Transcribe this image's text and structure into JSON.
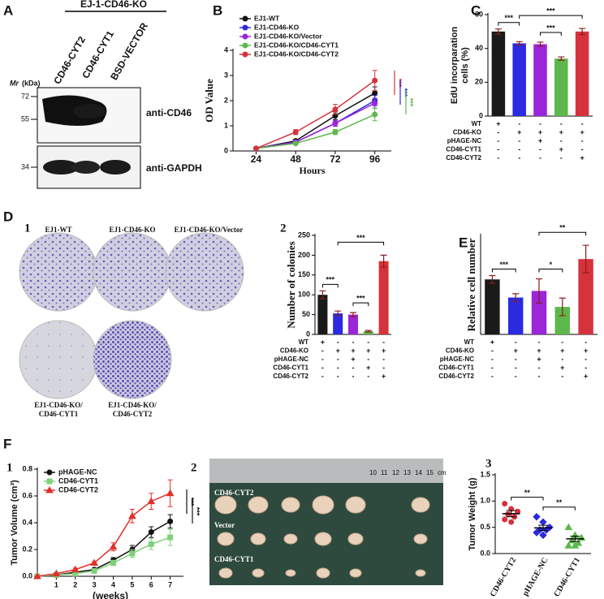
{
  "panel_labels": [
    "A",
    "B",
    "C",
    "D",
    "E",
    "F"
  ],
  "sub_labels": [
    "1",
    "2",
    "1",
    "2",
    "3"
  ],
  "blot": {
    "header": "EJ-1-CD46-KO",
    "lanes": [
      "CD46-CYT2",
      "CD46-CYT1",
      "BSD-VECTOR"
    ],
    "mr_label": "Mr",
    "mr_unit": "(kDa)",
    "markers": [
      "72",
      "55",
      "34"
    ],
    "antibodies": [
      "anti-CD46",
      "anti-GAPDH"
    ]
  },
  "colony_images": {
    "labels": [
      [
        "EJ1-WT"
      ],
      [
        "EJ1-CD46-KO"
      ],
      [
        "EJ1-CD46-KO/Vector"
      ],
      [
        "EJ1-CD46-KO/",
        "CD46-CYT1"
      ],
      [
        "EJ1-CD46-KO/",
        "CD46-CYT2"
      ]
    ]
  },
  "tumor_photo": {
    "ruler": [
      "10",
      "11",
      "12",
      "13",
      "14",
      "15",
      "cm"
    ],
    "rows": [
      "CD46-CYT2",
      "Vector",
      "CD46-CYT1"
    ]
  },
  "chart_data": [
    {
      "type": "line",
      "xlabel": "Hours",
      "ylabel": [
        "OD Value"
      ],
      "x": [
        24,
        48,
        72,
        96
      ],
      "xlim": [
        10,
        106
      ],
      "xticks": [
        24,
        48,
        72,
        96
      ],
      "ylim": [
        0,
        4
      ],
      "yticks": [
        0,
        1,
        2,
        3,
        4
      ],
      "legend": "top-left",
      "series": [
        {
          "name": "EJ1-WT",
          "color": "#111111",
          "marker": "circle",
          "values": [
            0.1,
            0.4,
            1.4,
            2.3
          ],
          "errors": [
            0.02,
            0.05,
            0.15,
            0.25
          ]
        },
        {
          "name": "EJ1-CD46-KO",
          "color": "#2a2ae0",
          "marker": "circle",
          "values": [
            0.1,
            0.35,
            1.1,
            2.0
          ],
          "errors": [
            0.02,
            0.04,
            0.12,
            0.2
          ]
        },
        {
          "name": "EJ1-CD46-KO/Vector",
          "color": "#9b25d8",
          "marker": "circle",
          "values": [
            0.1,
            0.35,
            1.1,
            1.9
          ],
          "errors": [
            0.02,
            0.04,
            0.12,
            0.2
          ]
        },
        {
          "name": "EJ1-CD46-KO/CD46-CYT1",
          "color": "#5cb84a",
          "marker": "circle",
          "values": [
            0.1,
            0.3,
            0.75,
            1.45
          ],
          "errors": [
            0.02,
            0.04,
            0.1,
            0.25
          ]
        },
        {
          "name": "EJ1-CD46-KO/CD46-CYT2",
          "color": "#d6323b",
          "marker": "circle",
          "values": [
            0.1,
            0.75,
            1.65,
            2.8
          ],
          "errors": [
            0.02,
            0.1,
            0.2,
            0.4
          ]
        }
      ],
      "annotations": [
        {
          "text": "***",
          "color": "#d6323b"
        },
        {
          "text": "***",
          "color": "#2a2ae0"
        },
        {
          "text": "***",
          "color": "#5cb84a"
        }
      ]
    },
    {
      "type": "bar",
      "ylabel": [
        "EdU incorparation",
        "cells (%)"
      ],
      "values": [
        50,
        43,
        42.5,
        34,
        50
      ],
      "errors": [
        1.5,
        1,
        1.2,
        1,
        1.8
      ],
      "colors": [
        "#1a1a1a",
        "#2a2ae0",
        "#9b25d8",
        "#5cb84a",
        "#d6323b"
      ],
      "ylim": [
        0,
        60
      ],
      "yticks": [
        0,
        20,
        40,
        60
      ],
      "sign_table": [
        {
          "label": "WT",
          "signs": [
            "+",
            "-",
            "-",
            "-",
            "-"
          ]
        },
        {
          "label": "CD46-KO",
          "signs": [
            "-",
            "+",
            "+",
            "+",
            "+"
          ]
        },
        {
          "label": "pHAGE-NC",
          "signs": [
            "-",
            "-",
            "+",
            "-",
            "-"
          ]
        },
        {
          "label": "CD46-CYT1",
          "signs": [
            "-",
            "-",
            "-",
            "+",
            "-"
          ]
        },
        {
          "label": "CD46-CYT2",
          "signs": [
            "-",
            "-",
            "-",
            "-",
            "+"
          ]
        }
      ],
      "comparisons": [
        {
          "between": [
            0,
            1
          ],
          "label": "***"
        },
        {
          "between": [
            2,
            3
          ],
          "label": "***"
        },
        {
          "between": [
            1,
            4
          ],
          "label": "***"
        }
      ]
    },
    {
      "type": "bar",
      "ylabel": [
        "Number of colonies"
      ],
      "values": [
        100,
        53,
        50,
        8,
        185
      ],
      "errors": [
        10,
        6,
        5,
        2,
        15
      ],
      "colors": [
        "#1a1a1a",
        "#2a2ae0",
        "#9b25d8",
        "#5cb84a",
        "#d6323b"
      ],
      "ylim": [
        0,
        250
      ],
      "yticks": [
        0,
        50,
        100,
        150,
        200,
        250
      ],
      "sign_table": [
        {
          "label": "WT",
          "signs": [
            "+",
            "-",
            "-",
            "-",
            "-"
          ]
        },
        {
          "label": "CD46-KO",
          "signs": [
            "-",
            "+",
            "+",
            "+",
            "+"
          ]
        },
        {
          "label": "pHAGE-NC",
          "signs": [
            "-",
            "-",
            "+",
            "-",
            "-"
          ]
        },
        {
          "label": "CD46-CYT1",
          "signs": [
            "-",
            "-",
            "-",
            "+",
            "-"
          ]
        },
        {
          "label": "CD46-CYT2",
          "signs": [
            "-",
            "-",
            "-",
            "-",
            "+"
          ]
        }
      ],
      "comparisons": [
        {
          "between": [
            0,
            1
          ],
          "label": "***"
        },
        {
          "between": [
            2,
            3
          ],
          "label": "***"
        },
        {
          "between": [
            1,
            4
          ],
          "label": "***"
        }
      ]
    },
    {
      "type": "bar",
      "ylabel": [
        "Relative cell number"
      ],
      "values": [
        100,
        67,
        79,
        50,
        137
      ],
      "errors": [
        7,
        7,
        22,
        16,
        25
      ],
      "colors": [
        "#1a1a1a",
        "#2a2ae0",
        "#9b25d8",
        "#5cb84a",
        "#d6323b"
      ],
      "ylim": [
        0,
        180
      ],
      "sign_table": [
        {
          "label": "WT",
          "signs": [
            "+",
            "-",
            "-",
            "-",
            "-"
          ]
        },
        {
          "label": "CD46-KO",
          "signs": [
            "-",
            "+",
            "+",
            "+",
            "+"
          ]
        },
        {
          "label": "pHAGE-NC",
          "signs": [
            "-",
            "-",
            "+",
            "-",
            "-"
          ]
        },
        {
          "label": "CD46-CYT1",
          "signs": [
            "-",
            "-",
            "-",
            "+",
            "-"
          ]
        },
        {
          "label": "CD46-CYT2",
          "signs": [
            "-",
            "-",
            "-",
            "-",
            "+"
          ]
        }
      ],
      "comparisons": [
        {
          "between": [
            0,
            1
          ],
          "label": "***"
        },
        {
          "between": [
            2,
            3
          ],
          "label": "*"
        },
        {
          "between": [
            2,
            4
          ],
          "label": "**"
        }
      ]
    },
    {
      "type": "line",
      "xlabel": "(weeks)",
      "ylabel": [
        "Tumor Volume (cm³)"
      ],
      "x": [
        0,
        1,
        2,
        3,
        4,
        5,
        6,
        7
      ],
      "xlim": [
        0,
        7.7
      ],
      "xticks": [
        1,
        2,
        3,
        4,
        5,
        6,
        7
      ],
      "ylim": [
        0,
        0.8
      ],
      "yticks": [
        {
          "value": 0,
          "label": "0.0"
        },
        0.2,
        0.4,
        0.6,
        0.8
      ],
      "legend": "top-left",
      "series": [
        {
          "name": "pHAGE-NC",
          "color": "#111111",
          "marker": "circle",
          "values": [
            0,
            0.01,
            0.03,
            0.05,
            0.12,
            0.2,
            0.33,
            0.41
          ],
          "errors": [
            0,
            0.003,
            0.005,
            0.01,
            0.02,
            0.03,
            0.04,
            0.05
          ]
        },
        {
          "name": "CD46-CYT1",
          "color": "#7fd17a",
          "marker": "square",
          "values": [
            0,
            0.01,
            0.02,
            0.04,
            0.1,
            0.17,
            0.24,
            0.29
          ],
          "errors": [
            0,
            0.003,
            0.005,
            0.01,
            0.02,
            0.03,
            0.04,
            0.06
          ]
        },
        {
          "name": "CD46-CYT2",
          "color": "#e0302a",
          "marker": "triangle",
          "values": [
            0,
            0.02,
            0.05,
            0.1,
            0.22,
            0.45,
            0.56,
            0.62
          ],
          "errors": [
            0,
            0.005,
            0.01,
            0.01,
            0.03,
            0.05,
            0.06,
            0.1
          ]
        }
      ],
      "annotations": [
        {
          "text": "***",
          "color": "#111111"
        },
        {
          "text": "***",
          "color": "#111111"
        }
      ]
    },
    {
      "type": "scatter",
      "ylabel": [
        "Tumor Weight (g)"
      ],
      "ylim": [
        0,
        1.5
      ],
      "yticks": [
        {
          "value": 0,
          "label": "0.0"
        },
        0.5,
        {
          "value": 1,
          "label": "1.0"
        },
        1.5
      ],
      "groups": [
        {
          "name": "CD46-CYT2",
          "color": "#d6323b",
          "marker": "circle",
          "values": [
            0.95,
            0.85,
            0.8,
            0.75,
            0.7,
            0.65,
            0.6
          ],
          "mean": 0.76,
          "sem": 0.06
        },
        {
          "name": "pHAGE-NC",
          "color": "#2a2ae0",
          "marker": "diamond",
          "values": [
            0.7,
            0.6,
            0.5,
            0.45,
            0.45,
            0.4,
            0.35
          ],
          "mean": 0.49,
          "sem": 0.05
        },
        {
          "name": "CD46-CYT1",
          "color": "#5cb84a",
          "marker": "triangle",
          "values": [
            0.5,
            0.35,
            0.3,
            0.25,
            0.2,
            0.15,
            0.15
          ],
          "mean": 0.28,
          "sem": 0.05
        }
      ],
      "comparisons": [
        {
          "between": [
            0,
            1
          ],
          "label": "**"
        },
        {
          "between": [
            1,
            2
          ],
          "label": "**"
        }
      ]
    }
  ]
}
